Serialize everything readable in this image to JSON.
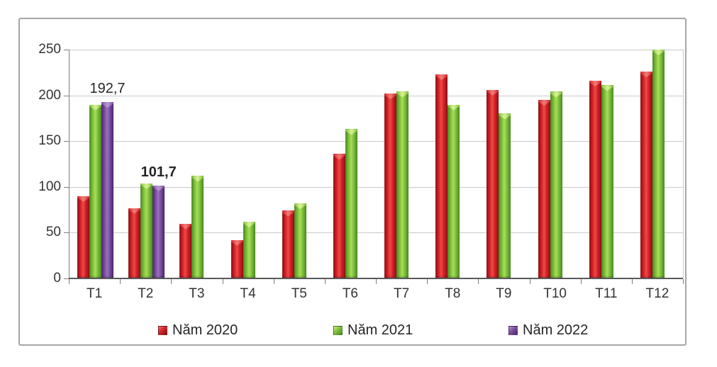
{
  "chart_data": {
    "type": "bar",
    "categories": [
      "T1",
      "T2",
      "T3",
      "T4",
      "T5",
      "T6",
      "T7",
      "T8",
      "T9",
      "T10",
      "T11",
      "T12"
    ],
    "series": [
      {
        "name": "Năm 2020",
        "colors": {
          "dark": "#8a1013",
          "mid": "#d5232a",
          "light": "#ef4a45",
          "cap": "#f07672"
        },
        "values": [
          90,
          77,
          60,
          42,
          74,
          136,
          202,
          223,
          206,
          195,
          216,
          226
        ]
      },
      {
        "name": "Năm 2021",
        "colors": {
          "dark": "#4a8822",
          "mid": "#7fc13d",
          "light": "#a9dd57",
          "cap": "#d2f08e"
        },
        "values": [
          190,
          104,
          112,
          62,
          82,
          163,
          204,
          190,
          180,
          204,
          211,
          250
        ]
      },
      {
        "name": "Năm 2022",
        "colors": {
          "dark": "#4b2569",
          "mid": "#7c4ea3",
          "light": "#9a71bd",
          "cap": "#b795d3"
        },
        "values": [
          192.7,
          101.7,
          null,
          null,
          null,
          null,
          null,
          null,
          null,
          null,
          null,
          null
        ]
      }
    ],
    "annotations": [
      {
        "text": "192,7",
        "category_index": 0,
        "series_index": 2,
        "bold": false
      },
      {
        "text": "101,7",
        "category_index": 1,
        "series_index": 2,
        "bold": true
      }
    ],
    "ylabel": "",
    "xlabel": "",
    "ylim": [
      0,
      250
    ],
    "yticks": [
      0,
      50,
      100,
      150,
      200,
      250
    ],
    "grid": true,
    "legend_position": "bottom"
  }
}
